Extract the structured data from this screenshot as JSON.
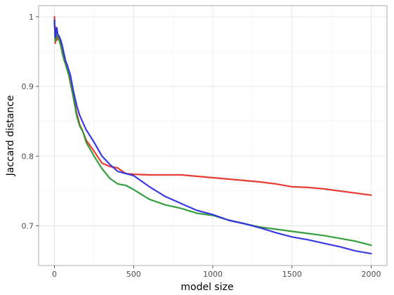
{
  "chart_data": {
    "type": "line",
    "title": "",
    "xlabel": "model size",
    "ylabel": "Jaccard distance",
    "xlim": [
      -100,
      2100
    ],
    "ylim": [
      0.643,
      1.016
    ],
    "x_ticks": [
      0,
      500,
      1000,
      1500,
      2000
    ],
    "x_tick_labels": [
      "0",
      "500",
      "1000",
      "1500",
      "2000"
    ],
    "y_ticks": [
      0.7,
      0.8,
      0.9,
      1.0
    ],
    "y_tick_labels": [
      "0.7",
      "0.8",
      "0.9",
      "1"
    ],
    "grid": true,
    "legend": "none",
    "series": [
      {
        "color": "#e8322a",
        "x": [
          0,
          5,
          10,
          15,
          20,
          30,
          40,
          50,
          60,
          70,
          80,
          90,
          100,
          120,
          140,
          160,
          180,
          200,
          250,
          300,
          350,
          400,
          450,
          500,
          600,
          700,
          800,
          900,
          1000,
          1100,
          1200,
          1300,
          1400,
          1500,
          1600,
          1700,
          1800,
          1900,
          2000
        ],
        "values": [
          1.0,
          0.962,
          0.985,
          0.966,
          0.972,
          0.968,
          0.964,
          0.952,
          0.944,
          0.935,
          0.925,
          0.917,
          0.905,
          0.885,
          0.862,
          0.845,
          0.835,
          0.823,
          0.807,
          0.79,
          0.785,
          0.783,
          0.775,
          0.774,
          0.773,
          0.773,
          0.773,
          0.771,
          0.769,
          0.767,
          0.765,
          0.763,
          0.76,
          0.756,
          0.755,
          0.753,
          0.75,
          0.747,
          0.744
        ]
      },
      {
        "color": "#2a9a34",
        "x": [
          0,
          5,
          10,
          15,
          20,
          30,
          40,
          50,
          60,
          70,
          80,
          90,
          100,
          120,
          140,
          160,
          180,
          200,
          250,
          300,
          350,
          400,
          450,
          500,
          600,
          700,
          800,
          900,
          1000,
          1100,
          1200,
          1300,
          1400,
          1500,
          1600,
          1700,
          1800,
          1900,
          2000
        ],
        "values": [
          0.995,
          0.965,
          0.978,
          0.97,
          0.97,
          0.966,
          0.958,
          0.947,
          0.938,
          0.932,
          0.924,
          0.917,
          0.908,
          0.883,
          0.858,
          0.843,
          0.835,
          0.82,
          0.8,
          0.782,
          0.768,
          0.76,
          0.758,
          0.752,
          0.738,
          0.73,
          0.725,
          0.718,
          0.715,
          0.708,
          0.703,
          0.698,
          0.695,
          0.692,
          0.689,
          0.686,
          0.682,
          0.678,
          0.672
        ]
      },
      {
        "color": "#2f2fe0",
        "x": [
          0,
          5,
          10,
          15,
          20,
          30,
          40,
          50,
          60,
          70,
          80,
          90,
          100,
          120,
          140,
          160,
          180,
          200,
          250,
          300,
          350,
          400,
          450,
          500,
          600,
          700,
          800,
          900,
          1000,
          1100,
          1200,
          1300,
          1400,
          1500,
          1600,
          1700,
          1800,
          1900,
          2000
        ],
        "values": [
          0.995,
          0.97,
          0.98,
          0.984,
          0.975,
          0.972,
          0.966,
          0.958,
          0.947,
          0.937,
          0.931,
          0.924,
          0.917,
          0.893,
          0.873,
          0.858,
          0.848,
          0.838,
          0.82,
          0.8,
          0.788,
          0.778,
          0.775,
          0.772,
          0.756,
          0.742,
          0.732,
          0.722,
          0.716,
          0.708,
          0.703,
          0.697,
          0.69,
          0.684,
          0.68,
          0.675,
          0.67,
          0.664,
          0.66
        ]
      }
    ]
  }
}
